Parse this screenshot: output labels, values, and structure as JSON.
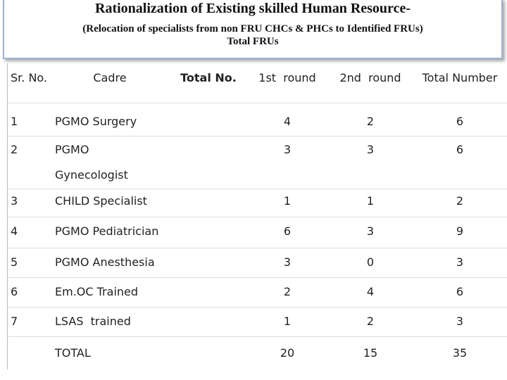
{
  "header": {
    "title": "Rationalization of Existing skilled Human Resource-",
    "subtitle": "(Relocation of specialists from non FRU CHCs & PHCs to Identified FRUs)",
    "subtitle2": "Total FRUs"
  },
  "table": {
    "columns": [
      "Sr. No.",
      "Cadre",
      "Total No.",
      "1st  round",
      "2nd  round",
      "Total Number"
    ],
    "rows": [
      {
        "sr": "1",
        "cadre": [
          "PGMO Surgery"
        ],
        "first": 4,
        "second": 2,
        "total": 6
      },
      {
        "sr": "2",
        "cadre": [
          "PGMO",
          "Gynecologist"
        ],
        "first": 3,
        "second": 3,
        "total": 6
      },
      {
        "sr": "3",
        "cadre": [
          "CHILD Specialist"
        ],
        "first": 1,
        "second": 1,
        "total": 2
      },
      {
        "sr": "4",
        "cadre": [
          "PGMO Pediatrician"
        ],
        "first": 6,
        "second": 3,
        "total": 9
      },
      {
        "sr": "5",
        "cadre": [
          "PGMO Anesthesia"
        ],
        "first": 3,
        "second": 0,
        "total": 3
      },
      {
        "sr": "6",
        "cadre": [
          "Em.OC Trained"
        ],
        "first": 2,
        "second": 4,
        "total": 6
      },
      {
        "sr": "7",
        "cadre": [
          "LSAS  trained"
        ],
        "first": 1,
        "second": 2,
        "total": 3
      },
      {
        "cadre": [
          "TOTAL"
        ],
        "first": 20,
        "second": 15,
        "total": 35
      }
    ]
  }
}
